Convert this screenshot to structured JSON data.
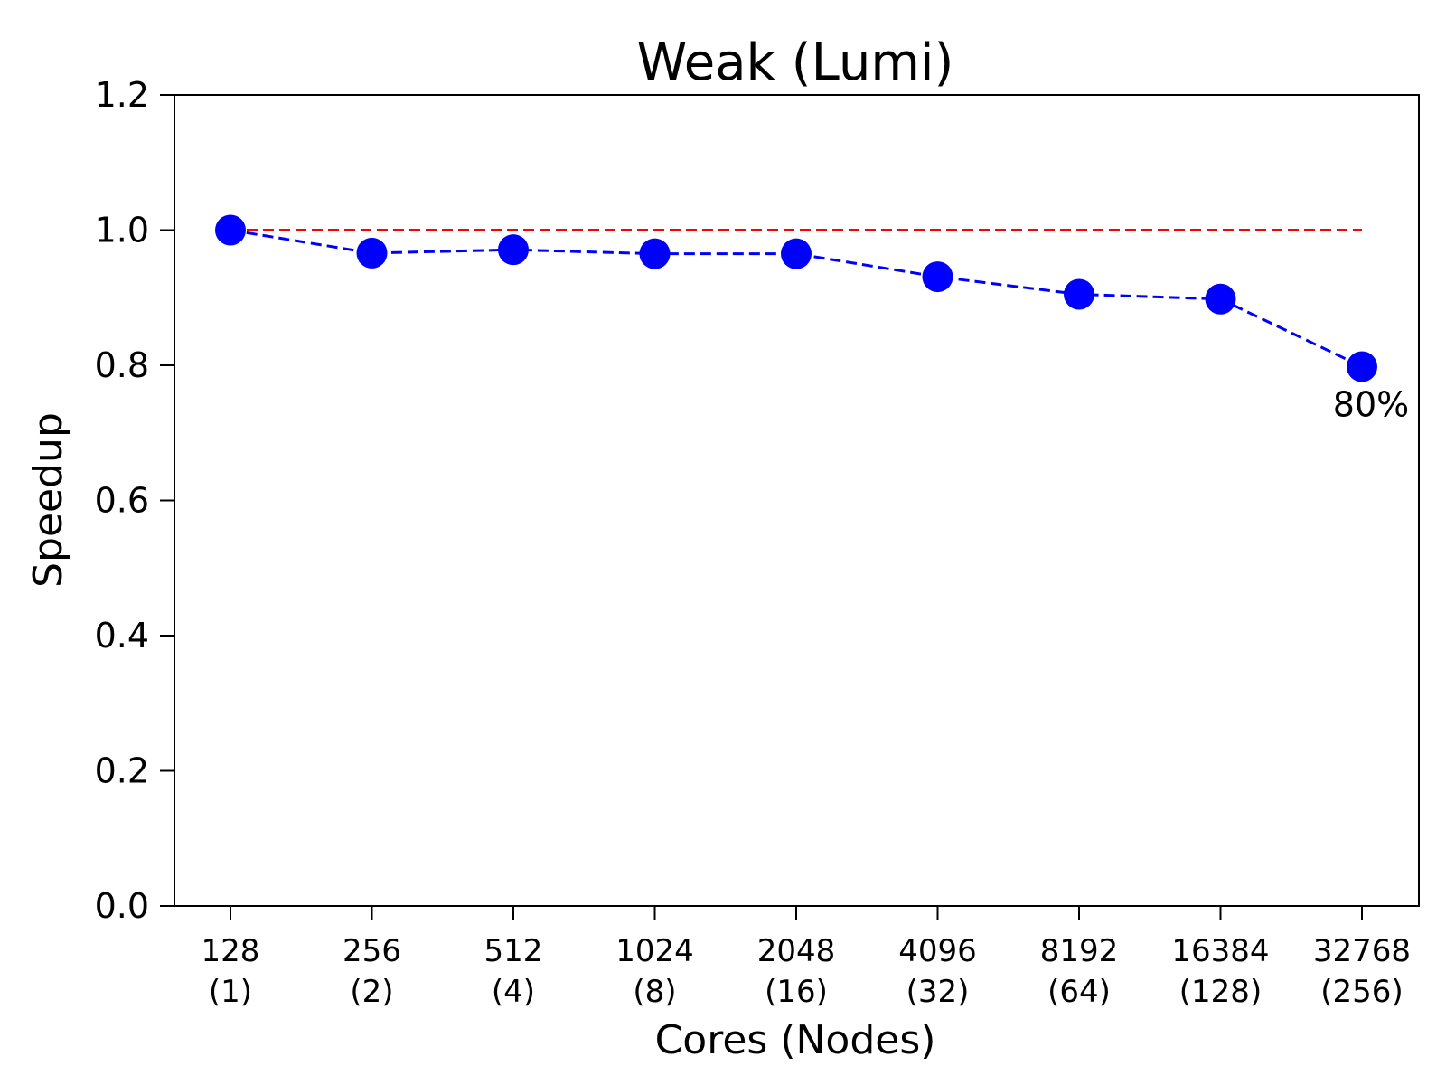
{
  "chart_data": {
    "type": "line",
    "title": "Weak (Lumi)",
    "xlabel": "Cores (Nodes)",
    "ylabel": "Speedup",
    "categories": [
      {
        "cores": "128",
        "nodes": "(1)"
      },
      {
        "cores": "256",
        "nodes": "(2)"
      },
      {
        "cores": "512",
        "nodes": "(4)"
      },
      {
        "cores": "1024",
        "nodes": "(8)"
      },
      {
        "cores": "2048",
        "nodes": "(16)"
      },
      {
        "cores": "4096",
        "nodes": "(32)"
      },
      {
        "cores": "8192",
        "nodes": "(64)"
      },
      {
        "cores": "16384",
        "nodes": "(128)"
      },
      {
        "cores": "32768",
        "nodes": "(256)"
      }
    ],
    "series": [
      {
        "values": [
          1.0,
          0.966,
          0.971,
          0.965,
          0.965,
          0.931,
          0.905,
          0.898,
          0.798
        ],
        "color": "#0000ff",
        "style": "dashed",
        "marker": "circle"
      },
      {
        "values": [
          1.0,
          1.0,
          1.0,
          1.0,
          1.0,
          1.0,
          1.0,
          1.0,
          1.0
        ],
        "color": "#ff0000",
        "style": "dashed",
        "marker": "none"
      }
    ],
    "yticks": [
      "0.0",
      "0.2",
      "0.4",
      "0.6",
      "0.8",
      "1.0",
      "1.2"
    ],
    "ylim": [
      0,
      1.2
    ],
    "grid": false,
    "annotations": [
      {
        "text": "80%",
        "category_index": 8,
        "value": 0.798
      }
    ]
  }
}
